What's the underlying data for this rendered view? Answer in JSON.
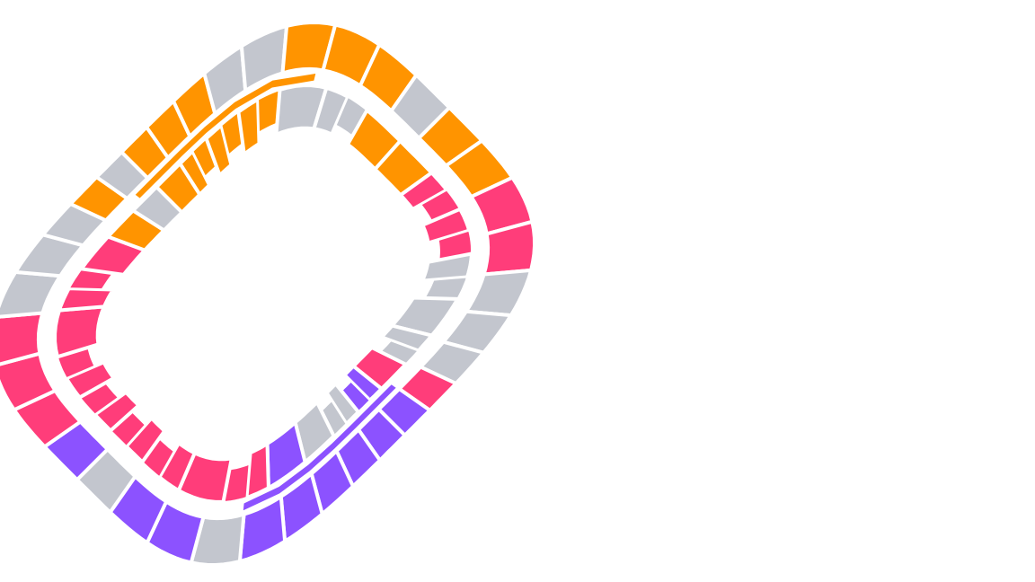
{
  "map": {
    "palette": {
      "orange": "#ff9400",
      "pink": "#ff3d7a",
      "purple": "#8c52ff",
      "grey": "#c3c6ce",
      "background": "#ffffff"
    },
    "outer_ring": [
      "orange",
      "orange",
      "orange",
      "grey",
      "grey",
      "orange",
      "orange",
      "orange",
      "grey",
      "orange",
      "orange",
      "pink",
      "pink",
      "grey",
      "grey",
      "grey",
      "pink",
      "purple",
      "purple",
      "purple",
      "purple",
      "purple",
      "purple",
      "grey",
      "purple",
      "purple",
      "grey",
      "purple",
      "pink",
      "pink",
      "pink",
      "grey",
      "grey",
      "grey",
      "orange",
      "grey"
    ],
    "inner_ring": [
      "orange",
      "orange",
      "orange",
      "orange",
      "grey",
      "grey",
      "orange",
      "orange",
      "pink",
      "pink",
      "grey",
      "grey",
      "grey",
      "pink",
      "purple",
      "grey",
      "grey",
      "purple",
      "pink",
      "pink",
      "pink",
      "pink",
      "pink",
      "pink",
      "pink",
      "pink",
      "pink",
      "orange",
      "grey"
    ],
    "inner_ring_notched": [
      false,
      true,
      true,
      true,
      false,
      true,
      false,
      false,
      true,
      true,
      true,
      false,
      true,
      false,
      true,
      true,
      false,
      false,
      true,
      false,
      true,
      true,
      true,
      true,
      false,
      true,
      false,
      false,
      false
    ],
    "arc_bands": [
      {
        "color": "orange"
      },
      {
        "color": "purple"
      }
    ]
  }
}
